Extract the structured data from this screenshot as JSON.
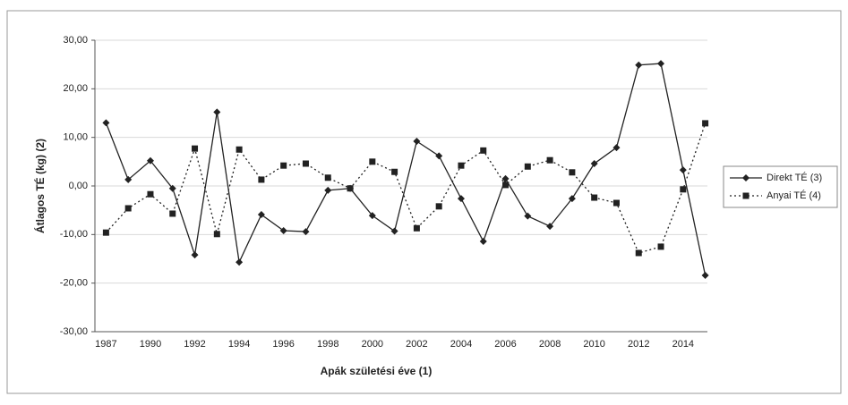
{
  "chart_data": {
    "type": "line",
    "x_label": "Apák születési éve (1)",
    "y_label": "Átlagos TÉ (kg) (2)",
    "categories": [
      "1987",
      null,
      "1990",
      null,
      "1992",
      null,
      "1994",
      null,
      "1996",
      null,
      "1998",
      null,
      "2000",
      null,
      "2002",
      null,
      "2004",
      null,
      "2006",
      null,
      "2008",
      null,
      "2010",
      null,
      "2012",
      null,
      "2014",
      null
    ],
    "series": [
      {
        "name": "Direkt TÉ (3)",
        "color": "#222222",
        "line_style": "solid",
        "marker": "diamond",
        "values": [
          13,
          1.3,
          5.2,
          -0.5,
          -14.2,
          15.2,
          -15.7,
          -5.9,
          -9.2,
          -9.4,
          -0.9,
          -0.5,
          -6.1,
          -9.3,
          9.2,
          6.2,
          -2.6,
          -11.4,
          1.5,
          -6.2,
          -8.3,
          -2.6,
          4.6,
          7.9,
          24.9,
          25.2,
          3.3,
          -18.4
        ]
      },
      {
        "name": "Anyai TÉ (4)",
        "color": "#222222",
        "line_style": "dotted",
        "marker": "square",
        "values": [
          -9.6,
          -4.6,
          -1.7,
          -5.7,
          7.7,
          -9.9,
          7.5,
          1.3,
          4.2,
          4.6,
          1.7,
          -0.5,
          5.0,
          2.9,
          -8.7,
          -4.2,
          4.2,
          7.3,
          0.2,
          4.0,
          5.3,
          2.8,
          -2.4,
          -3.5,
          -13.8,
          -12.5,
          -0.7,
          12.9
        ]
      }
    ],
    "ylim": [
      -30,
      30
    ],
    "yticks": [
      {
        "value": -30,
        "label": "-30,00"
      },
      {
        "value": -20,
        "label": "-20,00"
      },
      {
        "value": -10,
        "label": "-10,00"
      },
      {
        "value": 0,
        "label": "0,00"
      },
      {
        "value": 10,
        "label": "10,00"
      },
      {
        "value": 20,
        "label": "20,00"
      },
      {
        "value": 30,
        "label": "30,00"
      }
    ],
    "grid": true,
    "legend": "right"
  }
}
